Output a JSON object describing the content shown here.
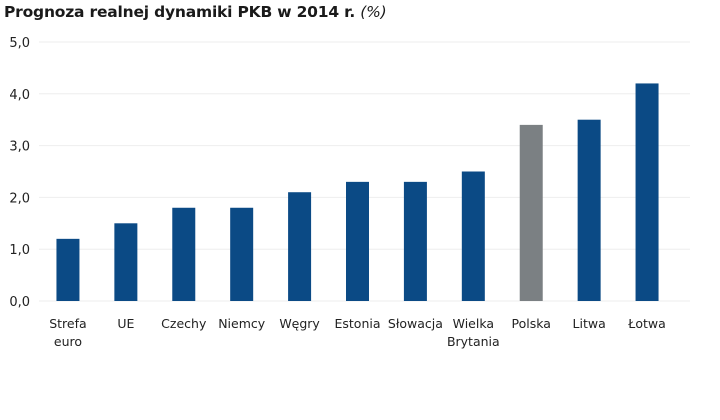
{
  "chart_data": {
    "type": "bar",
    "title": "Prognoza realnej dynamiki PKB w 2014 r.",
    "title_unit": "(%)",
    "categories": [
      "Strefa euro",
      "UE",
      "Czechy",
      "Niemcy",
      "Węgry",
      "Estonia",
      "Słowacja",
      "Wielka Brytania",
      "Polska",
      "Litwa",
      "Łotwa"
    ],
    "category_lines": [
      [
        "Strefa",
        "euro"
      ],
      [
        "UE"
      ],
      [
        "Czechy"
      ],
      [
        "Niemcy"
      ],
      [
        "Węgry"
      ],
      [
        "Estonia"
      ],
      [
        "Słowacja"
      ],
      [
        "Wielka",
        "Brytania"
      ],
      [
        "Polska"
      ],
      [
        "Litwa"
      ],
      [
        "Łotwa"
      ]
    ],
    "values": [
      1.2,
      1.5,
      1.8,
      1.8,
      2.1,
      2.3,
      2.3,
      2.5,
      3.4,
      3.5,
      4.2
    ],
    "highlight": "Polska",
    "colors": {
      "default": "#0b4a85",
      "highlight": "#7b8083",
      "grid": "#eeeeee"
    },
    "ylim": [
      0,
      5
    ],
    "yticks": [
      "0,0",
      "1,0",
      "2,0",
      "3,0",
      "4,0",
      "5,0"
    ],
    "xlabel": "",
    "ylabel": "",
    "grid": true
  }
}
